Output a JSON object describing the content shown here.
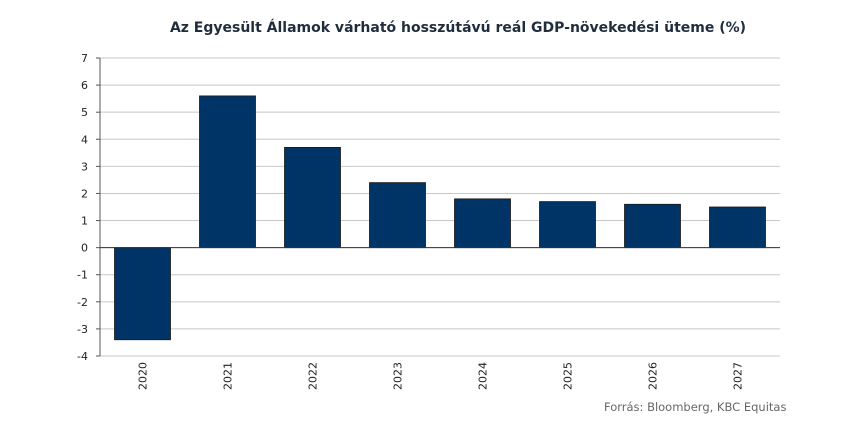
{
  "chart_data": {
    "type": "bar",
    "title": "Az Egyesült Államok várható hosszútávú reál GDP-növekedési üteme (%)",
    "categories": [
      "2020",
      "2021",
      "2022",
      "2023",
      "2024",
      "2025",
      "2026",
      "2027"
    ],
    "values": [
      -3.4,
      5.6,
      3.7,
      2.4,
      1.8,
      1.7,
      1.6,
      1.5
    ],
    "ylim": [
      -4,
      7
    ],
    "yticks": [
      "-4",
      "-3",
      "-2",
      "-1",
      "0",
      "1",
      "2",
      "3",
      "4",
      "5",
      "6",
      "7"
    ],
    "xlabel": "",
    "ylabel": "",
    "grid": true,
    "bar_color": "#003366",
    "source": "Forrás: Bloomberg, KBC Equitas"
  }
}
